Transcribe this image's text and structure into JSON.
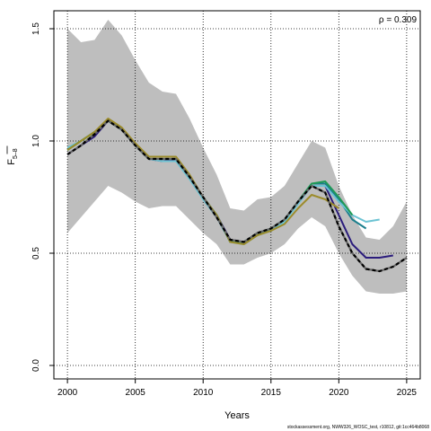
{
  "chart_data": {
    "type": "line",
    "title": "",
    "xlabel": "Years",
    "ylabel_main": "F",
    "ylabel_sub": "5–8",
    "annotation": "ρ = 0.309",
    "credit": "stockassessment.org, NWW326_WOSC_test, r10812, git:1cc464b8068",
    "xlim": [
      1999,
      2026
    ],
    "ylim": [
      -0.06,
      1.58
    ],
    "x_ticks": [
      2000,
      2005,
      2010,
      2015,
      2020,
      2025
    ],
    "y_ticks": [
      0.0,
      0.5,
      1.0,
      1.5
    ],
    "grid": true,
    "band": {
      "x": [
        2000,
        2001,
        2002,
        2003,
        2004,
        2005,
        2006,
        2007,
        2008,
        2009,
        2010,
        2011,
        2012,
        2013,
        2014,
        2015,
        2016,
        2017,
        2018,
        2019,
        2020,
        2021,
        2022,
        2023,
        2024,
        2025
      ],
      "upper": [
        1.5,
        1.44,
        1.45,
        1.54,
        1.47,
        1.36,
        1.26,
        1.22,
        1.21,
        1.1,
        0.97,
        0.85,
        0.7,
        0.69,
        0.74,
        0.75,
        0.8,
        0.9,
        1.0,
        0.97,
        0.8,
        0.67,
        0.57,
        0.56,
        0.62,
        0.73
      ],
      "lower": [
        0.59,
        0.66,
        0.73,
        0.8,
        0.77,
        0.73,
        0.7,
        0.71,
        0.71,
        0.65,
        0.59,
        0.54,
        0.45,
        0.45,
        0.48,
        0.5,
        0.54,
        0.61,
        0.66,
        0.62,
        0.5,
        0.4,
        0.33,
        0.32,
        0.32,
        0.33
      ],
      "color": "#bebebe"
    },
    "series": [
      {
        "color": "#000000",
        "dashed": true,
        "x": [
          2000,
          2001,
          2002,
          2003,
          2004,
          2005,
          2006,
          2007,
          2008,
          2009,
          2010,
          2011,
          2012,
          2013,
          2014,
          2015,
          2016,
          2017,
          2018,
          2019,
          2020,
          2021,
          2022,
          2023,
          2024,
          2025
        ],
        "y": [
          0.94,
          0.98,
          1.03,
          1.09,
          1.05,
          0.98,
          0.92,
          0.92,
          0.92,
          0.84,
          0.75,
          0.66,
          0.56,
          0.55,
          0.59,
          0.61,
          0.65,
          0.73,
          0.8,
          0.77,
          0.62,
          0.5,
          0.43,
          0.42,
          0.44,
          0.48
        ]
      },
      {
        "color": "#2b1c7c",
        "x": [
          2000,
          2001,
          2002,
          2003,
          2004,
          2005,
          2006,
          2007,
          2008,
          2009,
          2010,
          2011,
          2012,
          2013,
          2014,
          2015,
          2016,
          2017,
          2018,
          2019,
          2020,
          2021,
          2022,
          2023,
          2024
        ],
        "y": [
          0.94,
          0.98,
          1.02,
          1.09,
          1.05,
          0.98,
          0.92,
          0.91,
          0.92,
          0.84,
          0.75,
          0.67,
          0.56,
          0.55,
          0.59,
          0.61,
          0.65,
          0.73,
          0.8,
          0.8,
          0.67,
          0.54,
          0.48,
          0.48,
          0.49
        ]
      },
      {
        "color": "#1c7f8c",
        "x": [
          2000,
          2001,
          2002,
          2003,
          2004,
          2005,
          2006,
          2007,
          2008,
          2009,
          2010,
          2011,
          2012,
          2013,
          2014,
          2015,
          2016,
          2017,
          2018,
          2019,
          2020,
          2021,
          2022
        ],
        "y": [
          0.96,
          1.0,
          1.04,
          1.09,
          1.05,
          0.98,
          0.92,
          0.92,
          0.92,
          0.84,
          0.75,
          0.67,
          0.55,
          0.55,
          0.58,
          0.61,
          0.65,
          0.73,
          0.81,
          0.81,
          0.74,
          0.65,
          0.61
        ]
      },
      {
        "color": "#6cc3d3",
        "x": [
          2000,
          2001,
          2002,
          2003,
          2004,
          2005,
          2006,
          2007,
          2008,
          2009,
          2010,
          2011,
          2012,
          2013,
          2014,
          2015,
          2016,
          2017,
          2018,
          2019,
          2020,
          2021,
          2022,
          2023
        ],
        "y": [
          0.97,
          1.0,
          1.04,
          1.09,
          1.05,
          0.98,
          0.92,
          0.91,
          0.91,
          0.83,
          0.74,
          0.66,
          0.55,
          0.54,
          0.58,
          0.6,
          0.64,
          0.72,
          0.8,
          0.8,
          0.73,
          0.67,
          0.64,
          0.65
        ]
      },
      {
        "color": "#1f9a55",
        "x": [
          2000,
          2001,
          2002,
          2003,
          2004,
          2005,
          2006,
          2007,
          2008,
          2009,
          2010,
          2011,
          2012,
          2013,
          2014,
          2015,
          2016,
          2017,
          2018,
          2019,
          2020,
          2021
        ],
        "y": [
          0.96,
          1.0,
          1.04,
          1.09,
          1.05,
          0.98,
          0.92,
          0.92,
          0.92,
          0.84,
          0.75,
          0.67,
          0.55,
          0.55,
          0.59,
          0.61,
          0.65,
          0.73,
          0.81,
          0.82,
          0.75,
          0.67
        ]
      },
      {
        "color": "#9c8c2c",
        "x": [
          2000,
          2001,
          2002,
          2003,
          2004,
          2005,
          2006,
          2007,
          2008,
          2009,
          2010,
          2011,
          2012,
          2013,
          2014,
          2015,
          2016,
          2017,
          2018,
          2019,
          2020
        ],
        "y": [
          0.96,
          1.0,
          1.04,
          1.1,
          1.06,
          0.99,
          0.93,
          0.93,
          0.93,
          0.85,
          0.75,
          0.67,
          0.55,
          0.54,
          0.58,
          0.6,
          0.63,
          0.7,
          0.76,
          0.74,
          0.7
        ]
      }
    ]
  }
}
